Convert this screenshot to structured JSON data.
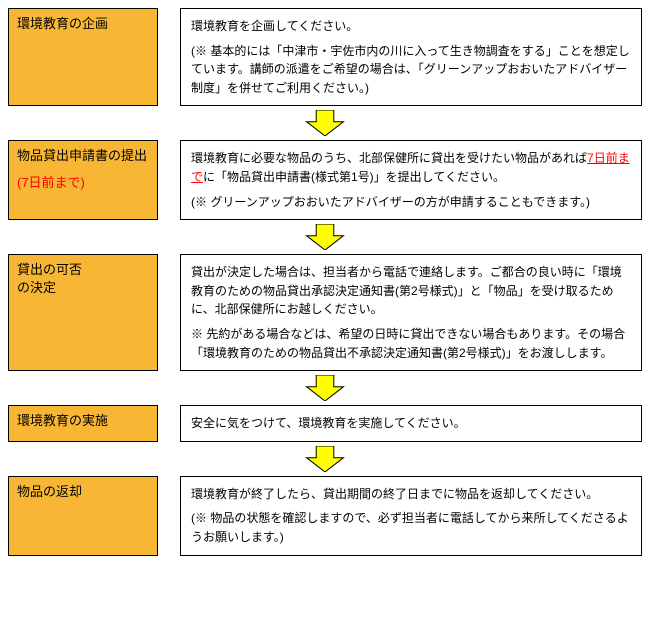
{
  "colors": {
    "label_bg": "#f7b735",
    "arrow_fill": "#ffff00",
    "arrow_stroke": "#000000",
    "highlight_text": "#ff0000",
    "border": "#000000",
    "text": "#000000",
    "bg": "#ffffff"
  },
  "arrow": {
    "width": 44,
    "height": 26,
    "stroke_width": 1
  },
  "steps": [
    {
      "label": {
        "title": "環境教育の企画",
        "sub": "",
        "sub_color": ""
      },
      "body": {
        "p1": "環境教育を企画してください。",
        "p2": "(※ 基本的には「中津市・宇佐市内の川に入って生き物調査をする」ことを想定しています。講師の派遣をご希望の場合は、「グリーンアップおおいたアドバイザー制度」を併せてご利用ください。)"
      }
    },
    {
      "label": {
        "title": "物品貸出申請書の提出",
        "sub": "(7日前まで)",
        "sub_color": "#ff0000"
      },
      "body": {
        "p1_a": "環境教育に必要な物品のうち、北部保健所に貸出を受けたい物品があれば",
        "p1_hl": "7日前まで",
        "p1_b": "に「物品貸出申請書(様式第1号)」を提出してください。",
        "p2": "(※ グリーンアップおおいたアドバイザーの方が申請することもできます。)"
      }
    },
    {
      "label": {
        "title": "貸出の可否",
        "sub": "の決定",
        "sub_color": ""
      },
      "body": {
        "p1": "貸出が決定した場合は、担当者から電話で連絡します。ご都合の良い時に「環境教育のための物品貸出承認決定通知書(第2号様式)」と「物品」を受け取るために、北部保健所にお越しください。",
        "p2": "※ 先約がある場合などは、希望の日時に貸出できない場合もあります。その場合「環境教育のための物品貸出不承認決定通知書(第2号様式)」をお渡しします。"
      }
    },
    {
      "label": {
        "title": "環境教育の実施",
        "sub": "",
        "sub_color": ""
      },
      "body": {
        "p1": "安全に気をつけて、環境教育を実施してください。"
      }
    },
    {
      "label": {
        "title": "物品の返却",
        "sub": "",
        "sub_color": ""
      },
      "body": {
        "p1": "環境教育が終了したら、貸出期間の終了日までに物品を返却してください。",
        "p2": "(※ 物品の状態を確認しますので、必ず担当者に電話してから来所してくださるようお願いします。)"
      }
    }
  ]
}
